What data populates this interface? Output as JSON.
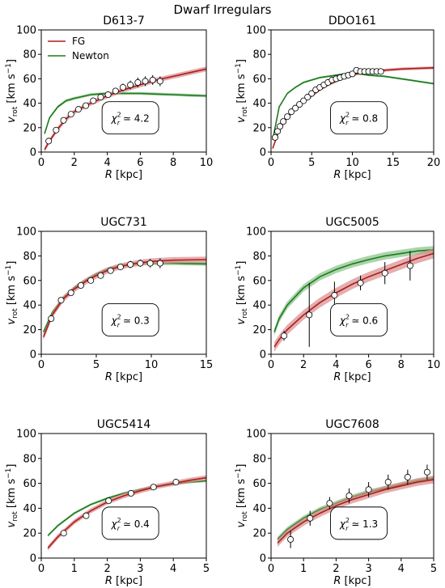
{
  "figure_title": "Dwarf Irregulars",
  "colors": {
    "fg": "#b01b1b",
    "fg_band": "#d88a8a",
    "newton": "#1f7a1f",
    "newton_band": "#86c286",
    "points": "#ffffff",
    "errorbar": "#000000"
  },
  "legend": {
    "fg": "FG",
    "newton": "Newton"
  },
  "xlabel": "R [kpc]",
  "ylabel": "v_rot [km s^-1]",
  "chart_data": [
    {
      "type": "line",
      "title": "D613-7",
      "chi2": "4.2",
      "show_legend": true,
      "xlim": [
        0,
        10
      ],
      "ylim": [
        0,
        100
      ],
      "xticks": [
        0,
        2,
        4,
        6,
        8,
        10
      ],
      "yticks": [
        0,
        20,
        40,
        60,
        80,
        100
      ],
      "points": [
        {
          "x": 0.45,
          "y": 9,
          "err": 1.5
        },
        {
          "x": 0.9,
          "y": 18,
          "err": 1.5
        },
        {
          "x": 1.35,
          "y": 26,
          "err": 1.5
        },
        {
          "x": 1.8,
          "y": 31,
          "err": 1.5
        },
        {
          "x": 2.25,
          "y": 35,
          "err": 1.5
        },
        {
          "x": 2.7,
          "y": 38,
          "err": 1.5
        },
        {
          "x": 3.15,
          "y": 42,
          "err": 2
        },
        {
          "x": 3.6,
          "y": 45,
          "err": 2
        },
        {
          "x": 4.05,
          "y": 47,
          "err": 2
        },
        {
          "x": 4.5,
          "y": 50,
          "err": 2.5
        },
        {
          "x": 4.95,
          "y": 53,
          "err": 3
        },
        {
          "x": 5.4,
          "y": 55,
          "err": 3.5
        },
        {
          "x": 5.85,
          "y": 57,
          "err": 4
        },
        {
          "x": 6.3,
          "y": 58,
          "err": 4
        },
        {
          "x": 6.75,
          "y": 59,
          "err": 4
        },
        {
          "x": 7.2,
          "y": 58,
          "err": 4
        }
      ],
      "series": [
        {
          "name": "FG",
          "band": 2,
          "x": [
            0.2,
            0.5,
            1,
            1.5,
            2,
            3,
            4,
            5,
            6,
            7,
            8,
            9,
            10
          ],
          "y": [
            2,
            9,
            19,
            27,
            33,
            40,
            46,
            51,
            55,
            59,
            62,
            65,
            68
          ]
        },
        {
          "name": "Newton",
          "band": 1.2,
          "x": [
            0.2,
            0.5,
            1,
            1.5,
            2,
            3,
            4,
            5,
            6,
            7,
            8,
            9,
            10
          ],
          "y": [
            15,
            28,
            37,
            42,
            44,
            47,
            48,
            48,
            48,
            47.5,
            47,
            46.5,
            46
          ]
        }
      ]
    },
    {
      "type": "line",
      "title": "DDO161",
      "chi2": "0.8",
      "show_legend": false,
      "xlim": [
        0,
        20
      ],
      "ylim": [
        0,
        100
      ],
      "xticks": [
        0,
        5,
        10,
        15,
        20
      ],
      "yticks": [
        0,
        20,
        40,
        60,
        80,
        100
      ],
      "points": [
        {
          "x": 0.5,
          "y": 12,
          "err": 1.5
        },
        {
          "x": 0.8,
          "y": 17,
          "err": 1.5
        },
        {
          "x": 1.1,
          "y": 21,
          "err": 1.5
        },
        {
          "x": 1.5,
          "y": 25,
          "err": 1.5
        },
        {
          "x": 2.0,
          "y": 29,
          "err": 1.5
        },
        {
          "x": 2.5,
          "y": 33,
          "err": 1.5
        },
        {
          "x": 3.0,
          "y": 36,
          "err": 1.5
        },
        {
          "x": 3.5,
          "y": 39,
          "err": 1.5
        },
        {
          "x": 4.0,
          "y": 42,
          "err": 1.5
        },
        {
          "x": 4.5,
          "y": 45,
          "err": 1.5
        },
        {
          "x": 5.0,
          "y": 48,
          "err": 1.5
        },
        {
          "x": 5.5,
          "y": 51,
          "err": 1.5
        },
        {
          "x": 6.0,
          "y": 53,
          "err": 1.5
        },
        {
          "x": 6.5,
          "y": 55,
          "err": 1.5
        },
        {
          "x": 7.0,
          "y": 57,
          "err": 1.5
        },
        {
          "x": 7.5,
          "y": 59,
          "err": 1.5
        },
        {
          "x": 8.0,
          "y": 60,
          "err": 1.5
        },
        {
          "x": 8.5,
          "y": 61,
          "err": 1.5
        },
        {
          "x": 9.0,
          "y": 62,
          "err": 1.5
        },
        {
          "x": 9.5,
          "y": 63,
          "err": 1.5
        },
        {
          "x": 10.0,
          "y": 64,
          "err": 1.5
        },
        {
          "x": 10.5,
          "y": 67,
          "err": 2
        },
        {
          "x": 11.0,
          "y": 66,
          "err": 1.5
        },
        {
          "x": 11.5,
          "y": 66,
          "err": 1.5
        },
        {
          "x": 12.0,
          "y": 66,
          "err": 1.5
        },
        {
          "x": 12.5,
          "y": 66,
          "err": 1.5
        },
        {
          "x": 13.0,
          "y": 66,
          "err": 1.5
        },
        {
          "x": 13.5,
          "y": 66,
          "err": 1.5
        }
      ],
      "series": [
        {
          "name": "FG",
          "band": 1.2,
          "x": [
            0.2,
            1,
            2,
            3,
            4,
            5,
            6,
            7,
            8,
            9,
            10,
            11,
            12,
            14,
            16,
            18,
            20
          ],
          "y": [
            3,
            18,
            28,
            35,
            41,
            46,
            51,
            55,
            58,
            61,
            63,
            65,
            66,
            67,
            68,
            68.5,
            69
          ]
        },
        {
          "name": "Newton",
          "band": 0.8,
          "x": [
            0.2,
            1,
            2,
            3,
            4,
            5,
            6,
            7,
            8,
            9,
            10,
            11,
            12,
            14,
            16,
            18,
            20
          ],
          "y": [
            10,
            37,
            48,
            53,
            57,
            59,
            61,
            62,
            63,
            64,
            64,
            64,
            63,
            62,
            60,
            58,
            56
          ]
        }
      ]
    },
    {
      "type": "line",
      "title": "UGC731",
      "chi2": "0.3",
      "show_legend": false,
      "xlim": [
        0,
        15
      ],
      "ylim": [
        0,
        100
      ],
      "xticks": [
        0,
        5,
        10,
        15
      ],
      "yticks": [
        0,
        20,
        40,
        60,
        80,
        100
      ],
      "points": [
        {
          "x": 0.9,
          "y": 29,
          "err": 2
        },
        {
          "x": 1.8,
          "y": 44,
          "err": 2
        },
        {
          "x": 2.7,
          "y": 50,
          "err": 2
        },
        {
          "x": 3.6,
          "y": 56,
          "err": 2.5
        },
        {
          "x": 4.5,
          "y": 60,
          "err": 2.5
        },
        {
          "x": 5.4,
          "y": 64,
          "err": 2.5
        },
        {
          "x": 6.3,
          "y": 68,
          "err": 2.5
        },
        {
          "x": 7.2,
          "y": 71,
          "err": 2.5
        },
        {
          "x": 8.1,
          "y": 73,
          "err": 3
        },
        {
          "x": 9.0,
          "y": 74,
          "err": 3
        },
        {
          "x": 9.9,
          "y": 74,
          "err": 3.5
        },
        {
          "x": 10.8,
          "y": 74,
          "err": 4
        }
      ],
      "series": [
        {
          "name": "FG",
          "band": 2.5,
          "x": [
            0.2,
            1,
            2,
            3,
            4,
            5,
            6,
            7,
            8,
            9,
            10,
            12,
            15
          ],
          "y": [
            14,
            32,
            45,
            53,
            59,
            64,
            68,
            71,
            73,
            74.5,
            75.5,
            76.5,
            77
          ]
        },
        {
          "name": "Newton",
          "band": 1.5,
          "x": [
            0.2,
            1,
            2,
            3,
            4,
            5,
            6,
            7,
            8,
            9,
            10,
            12,
            15
          ],
          "y": [
            18,
            34,
            46,
            54,
            60,
            65,
            69,
            71.5,
            73,
            74,
            74,
            74,
            73.5
          ]
        }
      ]
    },
    {
      "type": "line",
      "title": "UGC5005",
      "chi2": "0.6",
      "show_legend": false,
      "xlim": [
        0,
        10
      ],
      "ylim": [
        0,
        100
      ],
      "xticks": [
        0,
        2,
        4,
        6,
        8,
        10
      ],
      "yticks": [
        0,
        20,
        40,
        60,
        80,
        100
      ],
      "points": [
        {
          "x": 0.8,
          "y": 15,
          "err": 4
        },
        {
          "x": 2.35,
          "y": 32,
          "err": 26
        },
        {
          "x": 3.9,
          "y": 48,
          "err": 11
        },
        {
          "x": 5.5,
          "y": 58,
          "err": 6
        },
        {
          "x": 7.0,
          "y": 66,
          "err": 9
        },
        {
          "x": 8.55,
          "y": 72,
          "err": 12
        }
      ],
      "series": [
        {
          "name": "FG",
          "band": 4,
          "x": [
            0.2,
            0.5,
            1,
            2,
            3,
            4,
            5,
            6,
            7,
            8,
            9,
            10
          ],
          "y": [
            6,
            12,
            20,
            32,
            42,
            50,
            57,
            63,
            68,
            73,
            78,
            82
          ]
        },
        {
          "name": "Newton",
          "band": 3,
          "x": [
            0.2,
            0.5,
            1,
            2,
            3,
            4,
            5,
            6,
            7,
            8,
            9,
            10
          ],
          "y": [
            18,
            29,
            40,
            54,
            63,
            69,
            73.5,
            77,
            80,
            82,
            84,
            85
          ]
        }
      ]
    },
    {
      "type": "line",
      "title": "UGC5414",
      "chi2": "0.4",
      "show_legend": false,
      "xlim": [
        0,
        5
      ],
      "ylim": [
        0,
        100
      ],
      "xticks": [
        0,
        1,
        2,
        3,
        4,
        5
      ],
      "yticks": [
        0,
        20,
        40,
        60,
        80,
        100
      ],
      "points": [
        {
          "x": 0.68,
          "y": 20,
          "err": 1.5
        },
        {
          "x": 1.36,
          "y": 34,
          "err": 1.5
        },
        {
          "x": 2.04,
          "y": 46,
          "err": 1.5
        },
        {
          "x": 2.72,
          "y": 52,
          "err": 1.5
        },
        {
          "x": 3.4,
          "y": 57,
          "err": 1.5
        },
        {
          "x": 4.08,
          "y": 61,
          "err": 1.5
        }
      ],
      "series": [
        {
          "name": "FG",
          "band": 2,
          "x": [
            0.2,
            0.5,
            1,
            1.5,
            2,
            2.5,
            3,
            3.5,
            4,
            4.5,
            5
          ],
          "y": [
            8,
            17,
            29,
            38,
            45,
            50,
            54,
            57.5,
            60,
            62.5,
            64.5
          ]
        },
        {
          "name": "Newton",
          "band": 1,
          "x": [
            0.2,
            0.5,
            1,
            1.5,
            2,
            2.5,
            3,
            3.5,
            4,
            4.5,
            5
          ],
          "y": [
            18,
            26,
            36,
            43,
            48,
            52,
            55,
            57.5,
            59.5,
            61,
            62
          ]
        }
      ]
    },
    {
      "type": "line",
      "title": "UGC7608",
      "chi2": "1.3",
      "show_legend": false,
      "xlim": [
        0,
        5
      ],
      "ylim": [
        0,
        100
      ],
      "xticks": [
        0,
        1,
        2,
        3,
        4,
        5
      ],
      "yticks": [
        0,
        20,
        40,
        60,
        80,
        100
      ],
      "points": [
        {
          "x": 0.6,
          "y": 15,
          "err": 7
        },
        {
          "x": 1.2,
          "y": 32,
          "err": 6
        },
        {
          "x": 1.8,
          "y": 44,
          "err": 5
        },
        {
          "x": 2.4,
          "y": 50,
          "err": 6
        },
        {
          "x": 3.0,
          "y": 55,
          "err": 6
        },
        {
          "x": 3.6,
          "y": 61,
          "err": 6
        },
        {
          "x": 4.2,
          "y": 65,
          "err": 6
        },
        {
          "x": 4.8,
          "y": 69,
          "err": 6
        }
      ],
      "series": [
        {
          "name": "FG",
          "band": 3,
          "x": [
            0.2,
            0.5,
            1,
            1.5,
            2,
            2.5,
            3,
            3.5,
            4,
            4.5,
            5
          ],
          "y": [
            12,
            20,
            29,
            36,
            42,
            47,
            51,
            55,
            58,
            61,
            63
          ]
        },
        {
          "name": "Newton",
          "band": 2,
          "x": [
            0.2,
            0.5,
            1,
            1.5,
            2,
            2.5,
            3,
            3.5,
            4,
            4.5,
            5
          ],
          "y": [
            15,
            23,
            32,
            39,
            44,
            49,
            53,
            56,
            59,
            62,
            64
          ]
        }
      ]
    }
  ]
}
